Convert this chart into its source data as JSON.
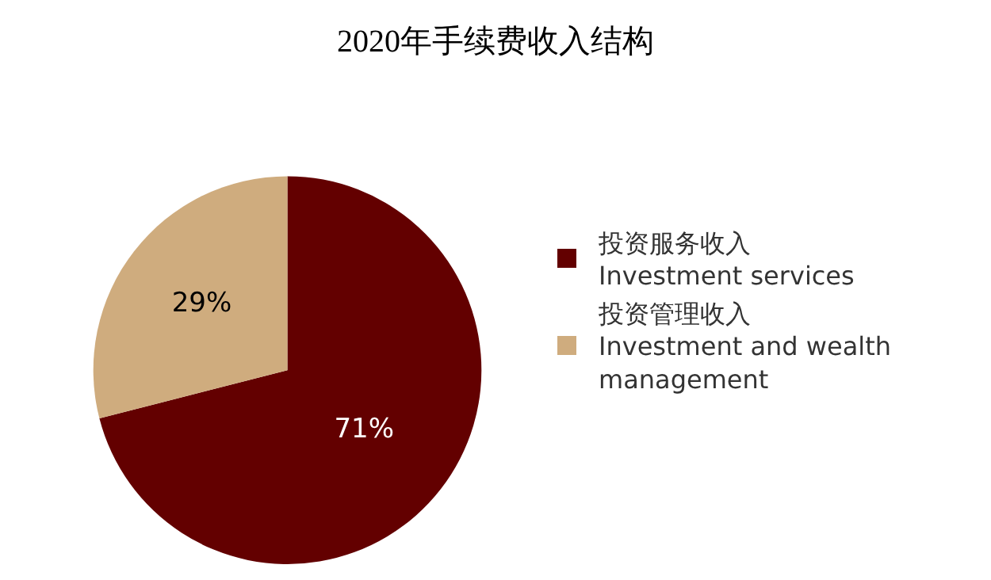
{
  "chart_data": {
    "type": "pie",
    "title": "2020年手续费收入结构",
    "categories": [
      "投资服务收入\nInvestment services",
      "投资管理收入\nInvestment and wealth\nmanagement"
    ],
    "values": [
      71,
      29
    ],
    "colors": [
      "#630000",
      "#cfac7e"
    ],
    "value_labels": [
      "71%",
      "29%"
    ],
    "legend": "right"
  }
}
